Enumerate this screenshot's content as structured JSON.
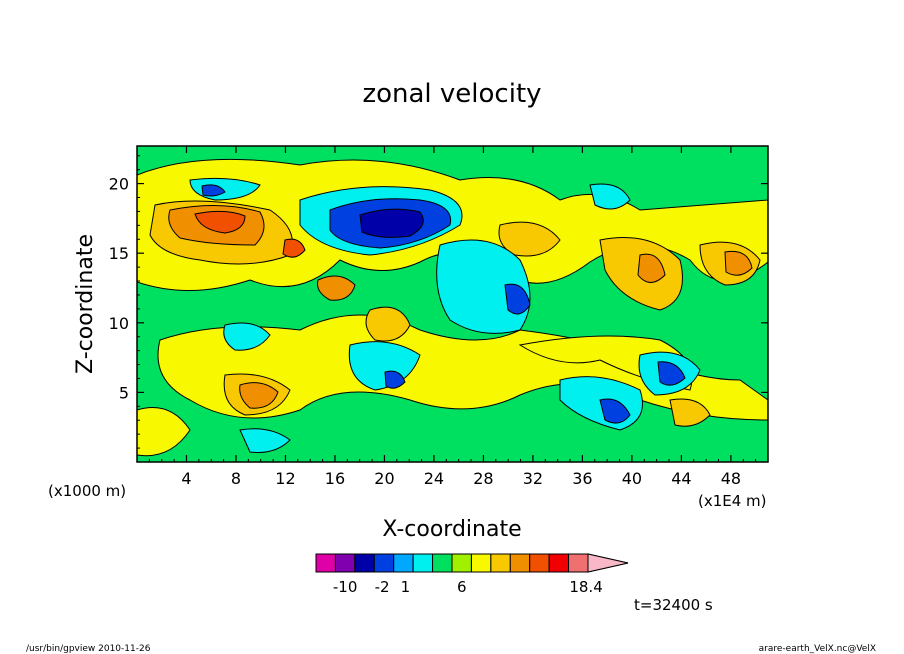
{
  "chart_data": {
    "type": "heatmap",
    "title": "zonal velocity",
    "xlabel": "X-coordinate",
    "ylabel": "Z-coordinate",
    "x_unit": "(x1E4 m)",
    "y_unit": "(x1000 m)",
    "x_ticks": [
      "4",
      "8",
      "12",
      "16",
      "20",
      "24",
      "28",
      "32",
      "36",
      "40",
      "44",
      "48"
    ],
    "x_tick_values": [
      4,
      8,
      12,
      16,
      20,
      24,
      28,
      32,
      36,
      40,
      44,
      48
    ],
    "y_ticks": [
      "5",
      "10",
      "15",
      "20"
    ],
    "y_tick_values": [
      5,
      10,
      15,
      20
    ],
    "xlim": [
      0,
      51
    ],
    "ylim": [
      0,
      22.7
    ],
    "colorbar": {
      "colors": [
        "#e000a8",
        "#8000b0",
        "#0000a8",
        "#0040e0",
        "#00a8ff",
        "#00f0f0",
        "#00e060",
        "#a0f000",
        "#f8f800",
        "#f8c800",
        "#f09000",
        "#f05000",
        "#f00000",
        "#f07070",
        "#f8b8c8"
      ],
      "labels": [
        "-10",
        "-2",
        "1",
        "6",
        "18.4"
      ],
      "label_positions": [
        1.5,
        3.4,
        4.6,
        7.5,
        13.9
      ]
    },
    "time_label": "t=32400 s"
  },
  "footer": {
    "left": "/usr/bin/gpview   2010-11-26",
    "right": "arare-earth_VelX.nc@VelX"
  }
}
